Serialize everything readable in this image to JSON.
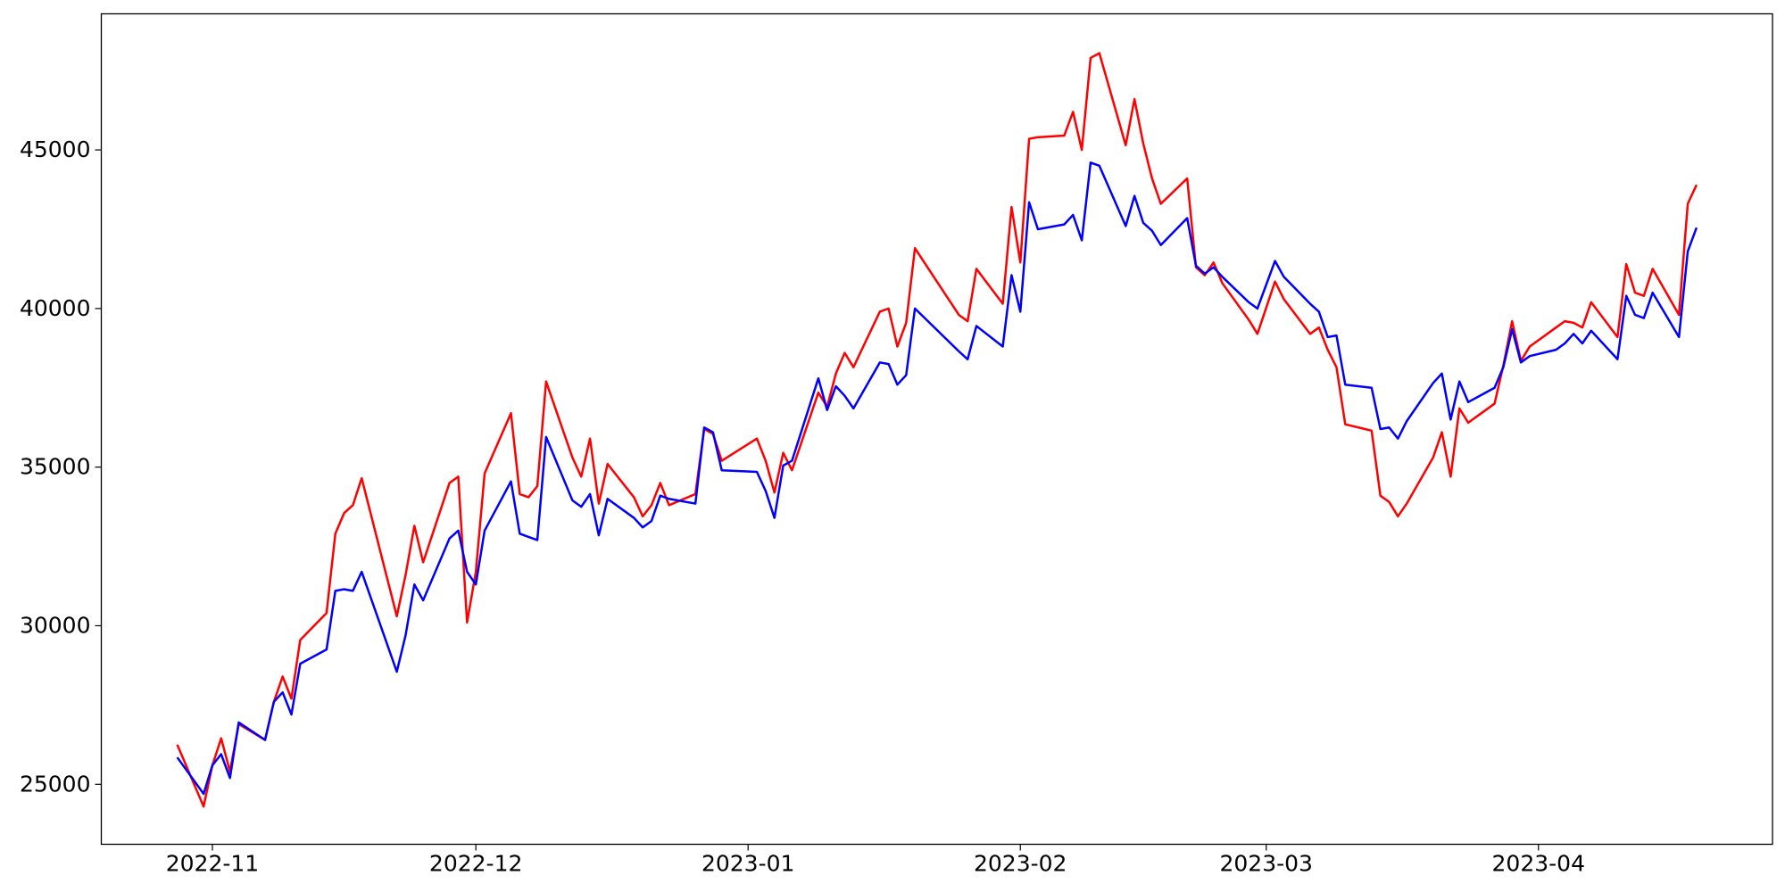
{
  "chart_data": {
    "type": "line",
    "x": [
      19293,
      19296,
      19297,
      19298,
      19299,
      19300,
      19303,
      19304,
      19305,
      19306,
      19307,
      19310,
      19311,
      19312,
      19313,
      19314,
      19318,
      19319,
      19320,
      19321,
      19324,
      19325,
      19326,
      19327,
      19328,
      19331,
      19332,
      19333,
      19334,
      19335,
      19338,
      19339,
      19340,
      19341,
      19342,
      19345,
      19346,
      19347,
      19348,
      19349,
      19352,
      19353,
      19354,
      19355,
      19359,
      19360,
      19361,
      19362,
      19363,
      19366,
      19367,
      19368,
      19369,
      19370,
      19373,
      19374,
      19375,
      19376,
      19377,
      19382,
      19383,
      19384,
      19387,
      19388,
      19389,
      19390,
      19391,
      19394,
      19395,
      19396,
      19397,
      19398,
      19401,
      19402,
      19403,
      19404,
      19405,
      19408,
      19409,
      19410,
      19411,
      19412,
      19415,
      19416,
      19418,
      19419,
      19422,
      19423,
      19424,
      19425,
      19426,
      19429,
      19430,
      19431,
      19432,
      19433,
      19436,
      19437,
      19438,
      19439,
      19440,
      19443,
      19444,
      19445,
      19446,
      19447,
      19450,
      19451,
      19452,
      19453,
      19454,
      19457,
      19458,
      19459,
      19460,
      19461,
      19464,
      19465,
      19466
    ],
    "series": [
      {
        "color": "#ff0000",
        "values": [
          26250,
          24300,
          25600,
          26450,
          25400,
          26900,
          26400,
          27600,
          28400,
          27700,
          29550,
          30400,
          32900,
          33550,
          33800,
          34650,
          30300,
          31600,
          33150,
          32000,
          34500,
          34700,
          30100,
          31700,
          34800,
          36700,
          34150,
          34050,
          34400,
          37700,
          35300,
          34700,
          35900,
          33850,
          35100,
          34050,
          33450,
          33800,
          34500,
          33800,
          34150,
          36200,
          36050,
          35200,
          35900,
          35200,
          34200,
          35450,
          34900,
          37350,
          36900,
          37950,
          38600,
          38150,
          39900,
          40000,
          38800,
          39550,
          41900,
          39800,
          39600,
          41250,
          40150,
          43200,
          41450,
          45350,
          45400,
          45450,
          46200,
          45000,
          47900,
          48050,
          45150,
          46600,
          45200,
          44100,
          43300,
          44100,
          41300,
          41050,
          41450,
          40800,
          39650,
          39200,
          40850,
          40300,
          39200,
          39400,
          38700,
          38150,
          36350,
          36150,
          34100,
          33900,
          33450,
          33850,
          35300,
          36100,
          34700,
          36850,
          36400,
          37000,
          38200,
          39600,
          38350,
          38800,
          39400,
          39600,
          39550,
          39400,
          40200,
          39100,
          41400,
          40500,
          40400,
          41250,
          39800,
          43300,
          43900
        ]
      },
      {
        "color": "#0000ff",
        "values": [
          25850,
          24700,
          25600,
          25950,
          25200,
          26950,
          26400,
          27600,
          27900,
          27200,
          28800,
          29250,
          31100,
          31150,
          31100,
          31700,
          28550,
          29700,
          31300,
          30800,
          32750,
          33000,
          31700,
          31300,
          33000,
          34550,
          32900,
          32800,
          32700,
          35950,
          33950,
          33750,
          34150,
          32850,
          34000,
          33400,
          33100,
          33300,
          34100,
          34000,
          33850,
          36250,
          36100,
          34900,
          34850,
          34250,
          33400,
          35050,
          35200,
          37800,
          36800,
          37550,
          37250,
          36850,
          38300,
          38250,
          37600,
          37900,
          40000,
          38650,
          38400,
          39450,
          38800,
          41050,
          39900,
          43350,
          42500,
          42650,
          42950,
          42150,
          44600,
          44500,
          42600,
          43550,
          42700,
          42450,
          42000,
          42850,
          41350,
          41100,
          41300,
          41000,
          40200,
          40000,
          41500,
          41000,
          40150,
          39900,
          39100,
          39150,
          37600,
          37500,
          36200,
          36250,
          35900,
          36450,
          37650,
          37950,
          36500,
          37700,
          37050,
          37500,
          38150,
          39350,
          38300,
          38500,
          38700,
          38900,
          39200,
          38900,
          39300,
          38400,
          40400,
          39800,
          39700,
          40500,
          39100,
          41800,
          42550
        ]
      }
    ],
    "xlim": [
      19284.35,
      19474.65
    ],
    "xticks": [
      {
        "value": 19297,
        "label": "2022-11"
      },
      {
        "value": 19327,
        "label": "2022-12"
      },
      {
        "value": 19358,
        "label": "2023-01"
      },
      {
        "value": 19389,
        "label": "2023-02"
      },
      {
        "value": 19417,
        "label": "2023-03"
      },
      {
        "value": 19448,
        "label": "2023-04"
      }
    ],
    "ylim": [
      23110,
      49290
    ],
    "yticks": [
      25000,
      30000,
      35000,
      40000,
      45000
    ],
    "grid": false
  }
}
